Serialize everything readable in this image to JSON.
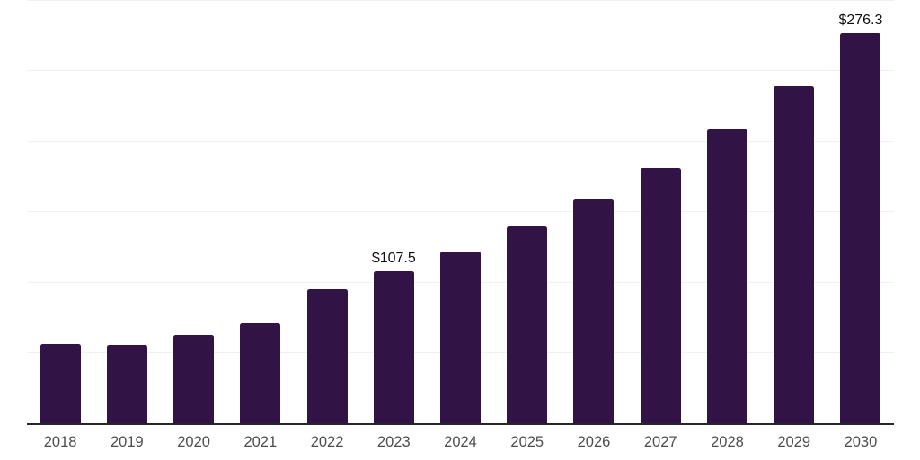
{
  "chart_data": {
    "type": "bar",
    "title": "",
    "xlabel": "",
    "ylabel": "",
    "categories": [
      "2018",
      "2019",
      "2020",
      "2021",
      "2022",
      "2023",
      "2024",
      "2025",
      "2026",
      "2027",
      "2028",
      "2029",
      "2030"
    ],
    "values": [
      55.8,
      55.5,
      62.5,
      70.6,
      94.8,
      107.5,
      122.0,
      139.5,
      158.5,
      181.2,
      208.3,
      238.9,
      276.3
    ],
    "data_labels": {
      "2023": "$107.5",
      "2030": "$276.3"
    },
    "ylim": [
      0,
      300
    ],
    "gridline_step": 50,
    "grid": true,
    "legend": "none",
    "colors": {
      "bar": "#321345",
      "gridline": "#f0f0f0",
      "axis_line": "#262626",
      "tick_label": "#4d4d4d",
      "data_label": "#0d0d0d",
      "background": "#ffffff"
    }
  }
}
